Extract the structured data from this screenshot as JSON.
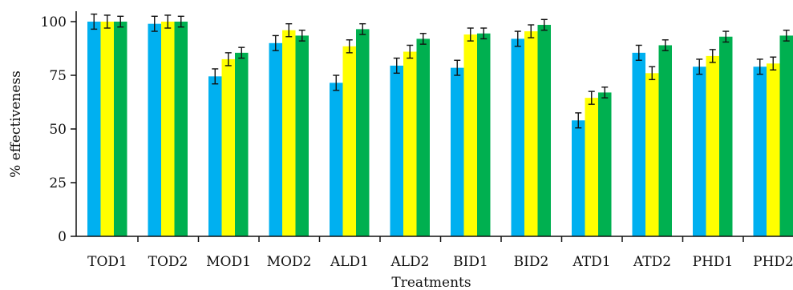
{
  "chart_data": {
    "type": "bar",
    "title": "",
    "xlabel": "Treatments",
    "ylabel": "% effectiveness",
    "ylim": [
      0,
      100
    ],
    "yticks": [
      0,
      25,
      50,
      75,
      100
    ],
    "grid": false,
    "legend": "none",
    "categories": [
      "TOD1",
      "TOD2",
      "MOD1",
      "MOD2",
      "ALD1",
      "ALD2",
      "BID1",
      "BID2",
      "ATD1",
      "ATD2",
      "PHD1",
      "PHD2"
    ],
    "series": [
      {
        "color": "#00b0f0",
        "values": [
          100,
          99,
          74.5,
          90,
          71.5,
          79.5,
          78.5,
          92,
          54,
          85.5,
          79,
          79
        ],
        "errors": [
          3.5,
          3.5,
          3.5,
          3.5,
          3.5,
          3.5,
          3.5,
          3.5,
          3.5,
          3.5,
          3.5,
          3.5
        ]
      },
      {
        "color": "#ffff00",
        "values": [
          100,
          100,
          82.5,
          96,
          88.5,
          86,
          94,
          95.5,
          64.5,
          76,
          84,
          80.5
        ],
        "errors": [
          3,
          3,
          3,
          3,
          3,
          3,
          3,
          3,
          3,
          3,
          3,
          3
        ]
      },
      {
        "color": "#00b050",
        "values": [
          100,
          100,
          85.5,
          93.5,
          96.5,
          92,
          94.5,
          98.5,
          67,
          89,
          93,
          93.5
        ],
        "errors": [
          2.5,
          2.5,
          2.5,
          2.5,
          2.5,
          2.5,
          2.5,
          2.5,
          2.5,
          2.5,
          2.5,
          2.5
        ]
      }
    ]
  }
}
